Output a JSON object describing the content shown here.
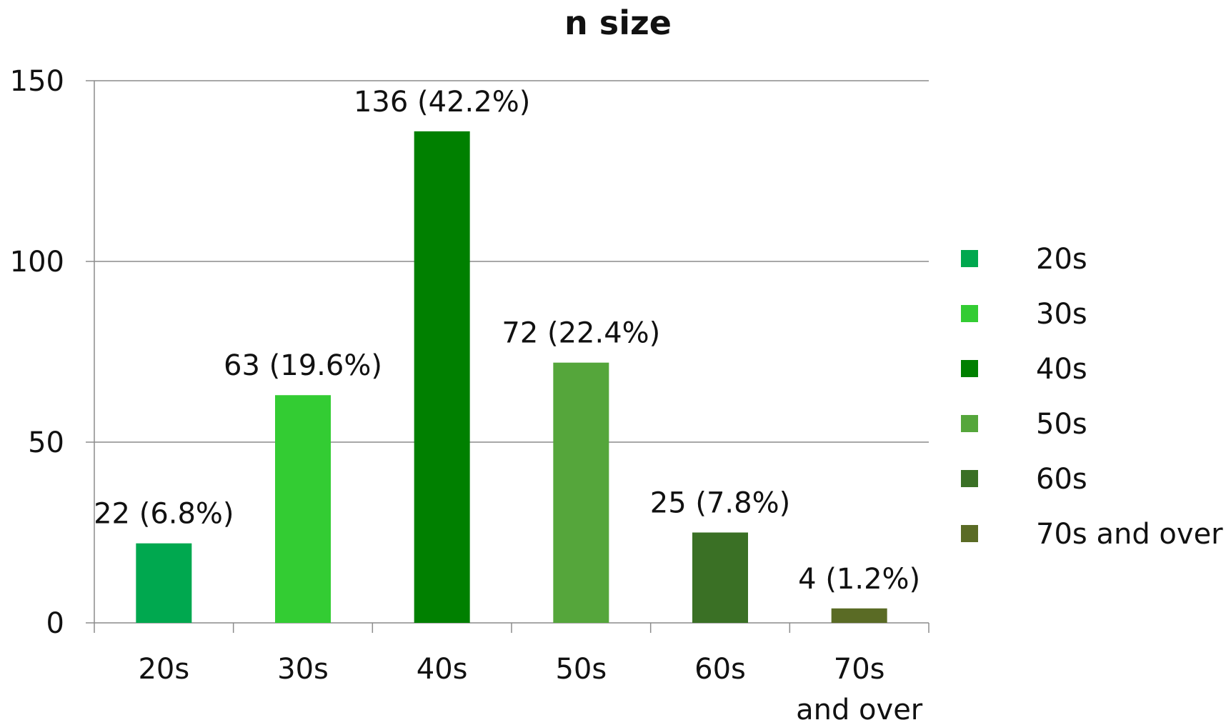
{
  "chart_data": {
    "type": "bar",
    "title": "n size",
    "xlabel": "",
    "ylabel": "",
    "categories": [
      "20s",
      "30s",
      "40s",
      "50s",
      "60s",
      "70s and over"
    ],
    "values": [
      22,
      63,
      136,
      72,
      25,
      4
    ],
    "data_labels": [
      "22 (6.8%)",
      "63 (19.6%)",
      "136 (42.2%)",
      "72 (22.4%)",
      "25 (7.8%)",
      "4 (1.2%)"
    ],
    "category_tick_lines": [
      [
        "20s"
      ],
      [
        "30s"
      ],
      [
        "40s"
      ],
      [
        "50s"
      ],
      [
        "60s"
      ],
      [
        "70s",
        "and over"
      ]
    ],
    "colors": [
      "#00A84F",
      "#33CC33",
      "#008000",
      "#55A63B",
      "#3A7025",
      "#5A6B25"
    ],
    "ylim": [
      0,
      150
    ],
    "yticks": [
      0,
      50,
      100,
      150
    ],
    "grid": true,
    "legend_position": "right",
    "legend": [
      "20s",
      "30s",
      "40s",
      "50s",
      "60s",
      "70s and over"
    ]
  }
}
